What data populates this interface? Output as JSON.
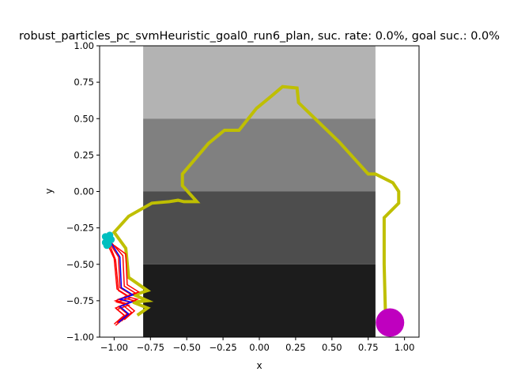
{
  "chart_data": {
    "type": "line",
    "title": "robust_particles_pc_svmHeuristic_goal0_run6_plan, suc. rate: 0.0%, goal suc.: 0.0%",
    "xlabel": "x",
    "ylabel": "y",
    "xlim": [
      -1.1,
      1.1
    ],
    "ylim": [
      -1.0,
      1.0
    ],
    "xticks": [
      -1.0,
      -0.75,
      -0.5,
      -0.25,
      0.0,
      0.25,
      0.5,
      0.75,
      1.0
    ],
    "yticks": [
      -1.0,
      -0.75,
      -0.5,
      -0.25,
      0.0,
      0.25,
      0.5,
      0.75,
      1.0
    ],
    "xtick_labels": [
      "−1.00",
      "−0.75",
      "−0.50",
      "−0.25",
      "0.00",
      "0.25",
      "0.50",
      "0.75",
      "1.00"
    ],
    "ytick_labels": [
      "−1.00",
      "−0.75",
      "−0.50",
      "−0.25",
      "0.00",
      "0.25",
      "0.50",
      "0.75",
      "1.00"
    ],
    "grid": false,
    "regions": [
      {
        "x": [
          -0.8,
          0.8
        ],
        "y": [
          0.5,
          1.0
        ],
        "color": "#b3b3b3"
      },
      {
        "x": [
          -0.8,
          0.8
        ],
        "y": [
          0.0,
          0.5
        ],
        "color": "#808080"
      },
      {
        "x": [
          -0.8,
          0.8
        ],
        "y": [
          -0.5,
          0.0
        ],
        "color": "#4d4d4d"
      },
      {
        "x": [
          -0.8,
          0.8
        ],
        "y": [
          -1.0,
          -0.5
        ],
        "color": "#1c1c1c"
      }
    ],
    "series": [
      {
        "color": "#bfbf00",
        "x": [
          0.87,
          0.86,
          0.86,
          0.96,
          0.96,
          0.92,
          0.8,
          0.75,
          0.55,
          0.27,
          0.26,
          0.16,
          0.09,
          -0.02,
          -0.14,
          -0.24,
          -0.35,
          -0.53,
          -0.53,
          -0.43,
          -0.52,
          -0.56,
          -0.62,
          -0.74,
          -0.9,
          -1.0,
          -0.92,
          -0.9,
          -0.77,
          -0.86,
          -0.77,
          -0.87,
          -0.77,
          -0.84
        ],
        "y": [
          -0.9,
          -0.5,
          -0.18,
          -0.08,
          0.0,
          0.06,
          0.12,
          0.12,
          0.34,
          0.61,
          0.71,
          0.72,
          0.66,
          0.57,
          0.42,
          0.42,
          0.33,
          0.12,
          0.04,
          -0.07,
          -0.07,
          -0.06,
          -0.07,
          -0.08,
          -0.17,
          -0.28,
          -0.39,
          -0.59,
          -0.68,
          -0.71,
          -0.75,
          -0.76,
          -0.8,
          -0.85
        ]
      },
      {
        "color": "#ff0000",
        "x": [
          -1.04,
          -0.97,
          -0.96,
          -0.88,
          -0.97,
          -0.89,
          -0.97,
          -0.91,
          -0.98
        ],
        "y": [
          -0.34,
          -0.45,
          -0.66,
          -0.71,
          -0.74,
          -0.76,
          -0.79,
          -0.84,
          -0.9
        ]
      },
      {
        "color": "#ff0000",
        "x": [
          -1.02,
          -0.94,
          -0.93,
          -0.85,
          -0.94,
          -0.86,
          -0.94,
          -0.88,
          -0.95
        ],
        "y": [
          -0.35,
          -0.44,
          -0.65,
          -0.7,
          -0.73,
          -0.75,
          -0.78,
          -0.83,
          -0.89
        ]
      },
      {
        "color": "#ff0000",
        "x": [
          -1.06,
          -1.0,
          -0.98,
          -0.9,
          -0.99,
          -0.91,
          -0.99,
          -0.93,
          -1.0
        ],
        "y": [
          -0.33,
          -0.46,
          -0.67,
          -0.72,
          -0.75,
          -0.77,
          -0.8,
          -0.85,
          -0.91
        ]
      },
      {
        "color": "#ff0000",
        "x": [
          -1.0,
          -0.92,
          -0.91,
          -0.83,
          -0.92,
          -0.84,
          -0.92,
          -0.86,
          -0.93
        ],
        "y": [
          -0.37,
          -0.43,
          -0.64,
          -0.69,
          -0.72,
          -0.74,
          -0.77,
          -0.82,
          -0.88
        ]
      },
      {
        "color": "#ff0000",
        "x": [
          -1.05,
          -0.99,
          -0.97,
          -0.89,
          -0.98,
          -0.9,
          -0.98,
          -0.92,
          -0.99
        ],
        "y": [
          -0.32,
          -0.47,
          -0.68,
          -0.73,
          -0.76,
          -0.78,
          -0.81,
          -0.86,
          -0.92
        ]
      },
      {
        "color": "#0000ff",
        "x": [
          -1.03,
          -0.96,
          -0.95,
          -0.87,
          -0.96,
          -0.88,
          -0.96,
          -0.9,
          -0.97
        ],
        "y": [
          -0.34,
          -0.45,
          -0.66,
          -0.71,
          -0.74,
          -0.76,
          -0.79,
          -0.84,
          -0.9
        ]
      },
      {
        "color": "#00bfbf",
        "type": "scatter",
        "x": [
          -1.06,
          -1.05,
          -1.03,
          -1.04,
          -1.06,
          -1.02,
          -1.05,
          -1.03
        ],
        "y": [
          -0.31,
          -0.34,
          -0.32,
          -0.36,
          -0.35,
          -0.33,
          -0.37,
          -0.3
        ]
      },
      {
        "color": "#bf00bf",
        "type": "scatter",
        "x": [
          0.9
        ],
        "y": [
          -0.9
        ]
      }
    ]
  }
}
